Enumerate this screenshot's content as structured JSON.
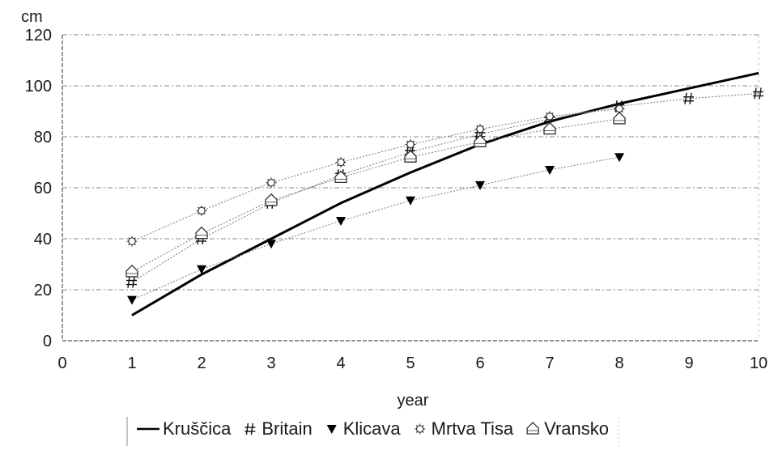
{
  "chart_data": {
    "type": "line",
    "xlabel": "year",
    "ylabel": "cm",
    "xlim": [
      0,
      10
    ],
    "ylim": [
      0,
      120
    ],
    "x_ticks": [
      "0",
      "1",
      "2",
      "3",
      "4",
      "5",
      "6",
      "7",
      "8",
      "9",
      "10"
    ],
    "y_ticks": [
      "0",
      "20",
      "40",
      "60",
      "80",
      "100",
      "120"
    ],
    "grid": "horizontal",
    "legend_position": "bottom",
    "series": [
      {
        "name": "Kruščica",
        "style": "thick-line",
        "color": "#000000",
        "x": [
          1,
          2,
          3,
          4,
          5,
          6,
          7,
          8,
          9,
          10
        ],
        "y": [
          10,
          26,
          40,
          54,
          66,
          77,
          86,
          93,
          99,
          105
        ]
      },
      {
        "name": "Britain",
        "style": "points-with-trend",
        "marker": "hash",
        "color": "#222222",
        "x": [
          1,
          2,
          3,
          4,
          5,
          6,
          7,
          8,
          9,
          10
        ],
        "y": [
          23,
          40,
          54,
          65,
          74,
          81,
          87,
          92,
          95,
          97
        ]
      },
      {
        "name": "Klicava",
        "style": "points-with-trend",
        "marker": "triangle-down",
        "color": "#000000",
        "x": [
          1,
          2,
          3,
          4,
          5,
          6,
          7,
          8
        ],
        "y": [
          16,
          28,
          38,
          47,
          55,
          61,
          67,
          72
        ]
      },
      {
        "name": "Mrtva Tisa",
        "style": "points-with-trend",
        "marker": "star-circle",
        "color": "#333333",
        "x": [
          1,
          2,
          3,
          4,
          5,
          6,
          7,
          8
        ],
        "y": [
          39,
          51,
          62,
          70,
          77,
          83,
          88,
          91
        ]
      },
      {
        "name": "Vransko",
        "style": "points-with-trend",
        "marker": "house",
        "color": "#333333",
        "x": [
          1,
          2,
          3,
          4,
          5,
          6,
          7,
          8
        ],
        "y": [
          27,
          42,
          55,
          64,
          72,
          78,
          83,
          87
        ]
      }
    ]
  }
}
